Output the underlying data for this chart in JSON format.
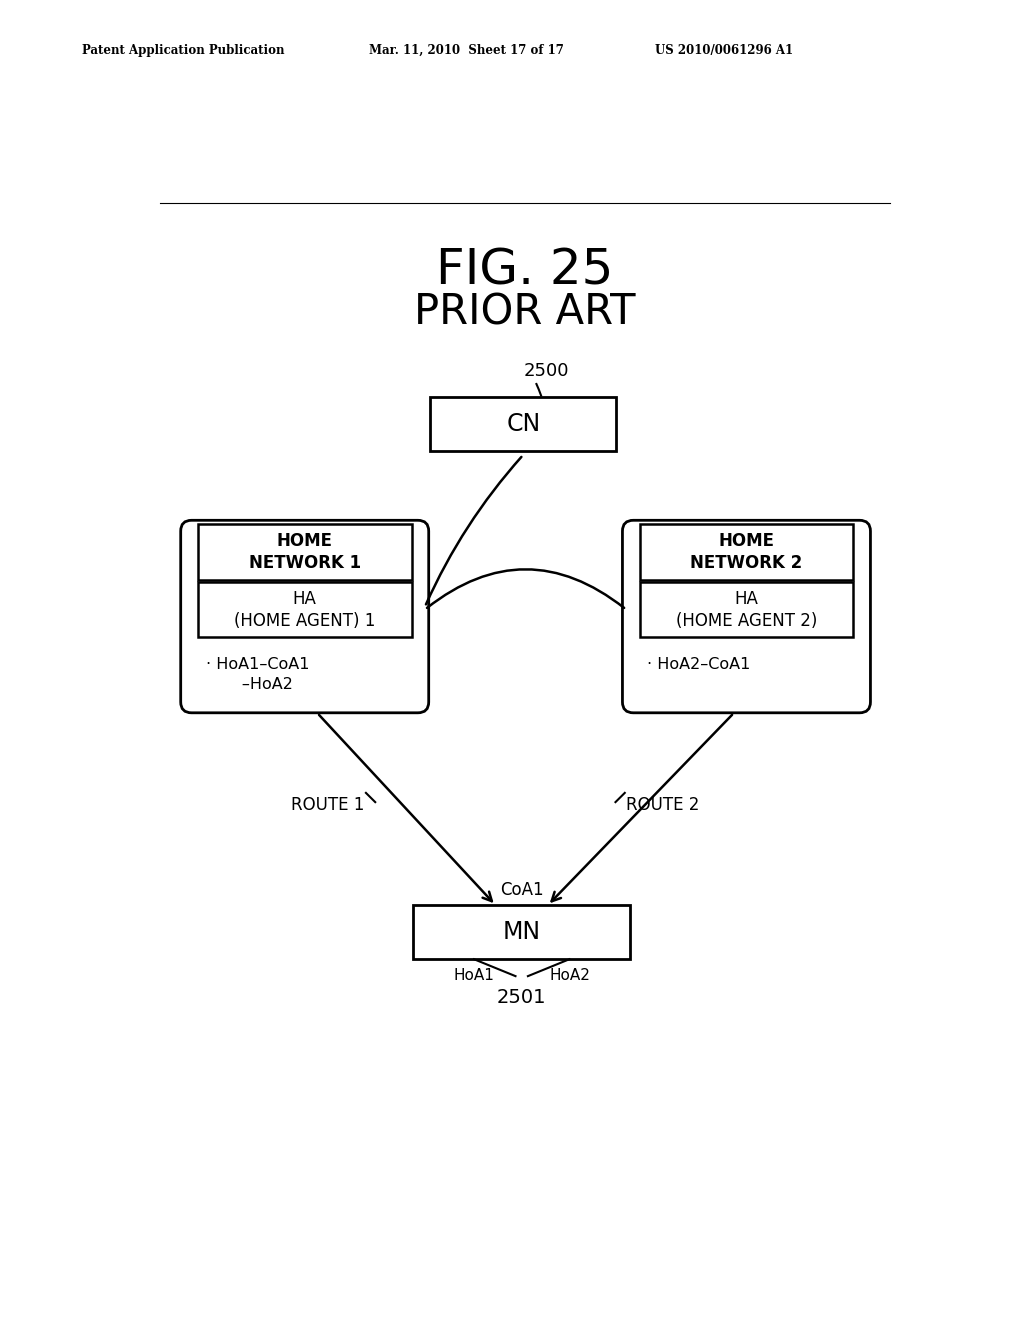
{
  "fig_width": 10.24,
  "fig_height": 13.2,
  "bg_color": "#ffffff",
  "header_left": "Patent Application Publication",
  "header_mid": "Mar. 11, 2010  Sheet 17 of 17",
  "header_right": "US 2010/0061296 A1",
  "title_line1": "FIG. 25",
  "title_line2": "PRIOR ART",
  "cn_label": "CN",
  "label_2500": "2500",
  "label_2501": "2501",
  "label_coa1": "CoA1",
  "label_hoa1": "HoA1",
  "label_hoa2": "HoA2",
  "label_route1": "ROUTE 1",
  "label_route2": "ROUTE 2",
  "hn1_top_label": "HOME\nNETWORK 1",
  "hn1_bot_label": "HA\n(HOME AGENT) 1",
  "hn1_note": "· HoA1–CoA1\n       –HoA2",
  "hn2_top_label": "HOME\nNETWORK 2",
  "hn2_bot_label": "HA\n(HOME AGENT 2)",
  "hn2_note": "· HoA2–CoA1",
  "mn_label": "MN"
}
